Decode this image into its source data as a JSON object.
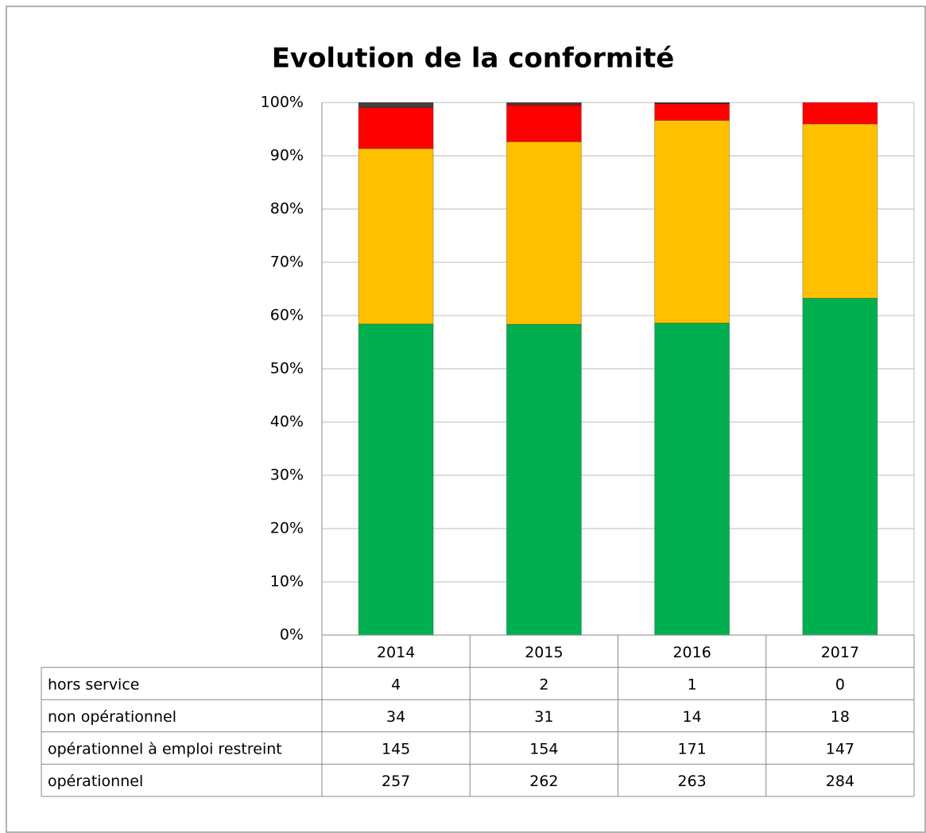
{
  "chart_data": {
    "type": "bar",
    "stacking": "percent",
    "title": "Evolution de la conformité",
    "categories": [
      "2014",
      "2015",
      "2016",
      "2017"
    ],
    "series": [
      {
        "name": "hors service",
        "color": "#404040",
        "values": [
          4,
          2,
          1,
          0
        ]
      },
      {
        "name": "non opérationnel",
        "color": "#ff0000",
        "values": [
          34,
          31,
          14,
          18
        ]
      },
      {
        "name": "opérationnel à emploi restreint",
        "color": "#ffc000",
        "values": [
          145,
          154,
          171,
          147
        ]
      },
      {
        "name": "opérationnel",
        "color": "#00b050",
        "values": [
          257,
          262,
          263,
          284
        ]
      }
    ],
    "ylim": [
      0,
      100
    ],
    "yticks": [
      {
        "value": 0,
        "label": "0%"
      },
      {
        "value": 10,
        "label": "10%"
      },
      {
        "value": 20,
        "label": "20%"
      },
      {
        "value": 30,
        "label": "30%"
      },
      {
        "value": 40,
        "label": "40%"
      },
      {
        "value": 50,
        "label": "50%"
      },
      {
        "value": 60,
        "label": "60%"
      },
      {
        "value": 70,
        "label": "70%"
      },
      {
        "value": 80,
        "label": "80%"
      },
      {
        "value": 90,
        "label": "90%"
      },
      {
        "value": 100,
        "label": "100%"
      }
    ],
    "grid": true
  }
}
